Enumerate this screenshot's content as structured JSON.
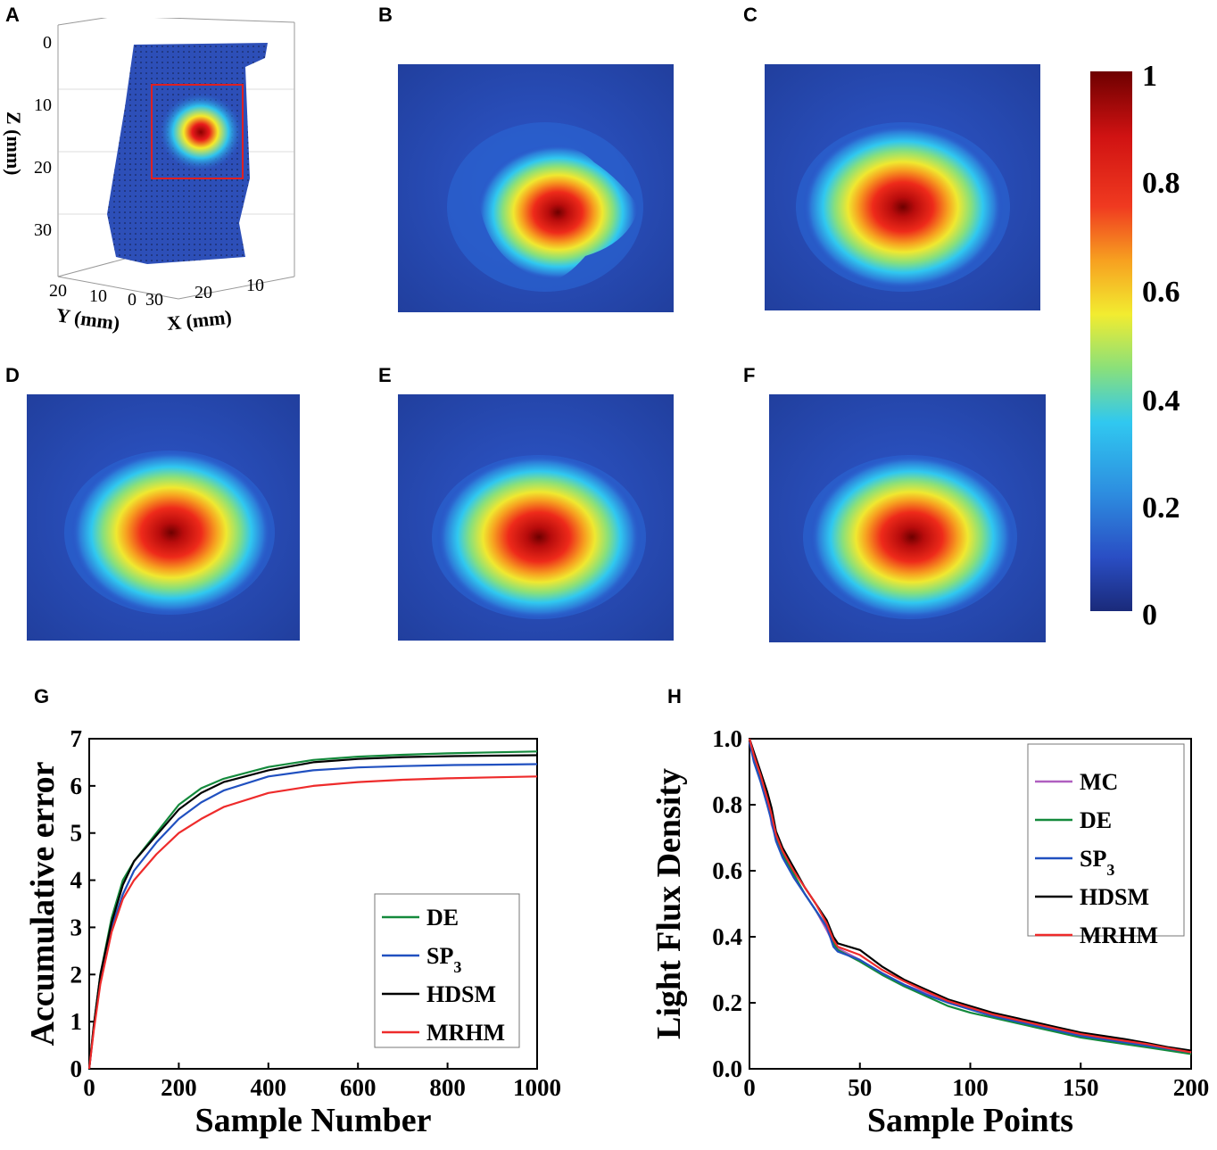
{
  "panels": {
    "A": "A",
    "B": "B",
    "C": "C",
    "D": "D",
    "E": "E",
    "F": "F",
    "G": "G",
    "H": "H"
  },
  "colors": {
    "bg_blue": "#2a4ec4",
    "dark_red": "#7a0000",
    "red": "#e81b1b",
    "yellow": "#f5e92a",
    "cyan": "#2fc4ee",
    "de": "#148a3c",
    "sp3": "#2050c0",
    "hdsm": "#000000",
    "mrhm": "#ee2b2b",
    "mc": "#b060c0"
  },
  "panel_a": {
    "z_axis_label": "Z (mm)",
    "z_ticks": [
      "0",
      "10",
      "20",
      "30"
    ],
    "y_axis_label": "Y (mm)",
    "y_ticks": [
      "20",
      "10",
      "0"
    ],
    "x_axis_label": "X (mm)",
    "x_ticks": [
      "30",
      "20",
      "10"
    ]
  },
  "colorbar": {
    "ticks": [
      "1",
      "0.8",
      "0.6",
      "0.4",
      "0.2",
      "0"
    ]
  },
  "chart_data": [
    {
      "id": "G",
      "type": "line",
      "xlabel": "Sample Number",
      "ylabel": "Accumulative error",
      "xlim": [
        0,
        1000
      ],
      "ylim": [
        0,
        7
      ],
      "xticks": [
        "0",
        "200",
        "400",
        "600",
        "800",
        "1000"
      ],
      "yticks": [
        "0",
        "1",
        "2",
        "3",
        "4",
        "5",
        "6",
        "7"
      ],
      "legend": "bottom-right",
      "x": [
        0,
        10,
        25,
        50,
        75,
        100,
        150,
        200,
        250,
        300,
        400,
        500,
        600,
        700,
        800,
        900,
        1000
      ],
      "series": [
        {
          "name": "DE",
          "color_key": "de",
          "values": [
            0,
            0.9,
            2.0,
            3.2,
            4.0,
            4.4,
            5.0,
            5.6,
            5.95,
            6.15,
            6.4,
            6.55,
            6.62,
            6.66,
            6.69,
            6.71,
            6.73
          ]
        },
        {
          "name": "SP3",
          "color_key": "sp3",
          "values": [
            0,
            0.85,
            1.9,
            3.0,
            3.7,
            4.2,
            4.8,
            5.3,
            5.65,
            5.9,
            6.2,
            6.33,
            6.39,
            6.42,
            6.44,
            6.45,
            6.46
          ]
        },
        {
          "name": "HDSM",
          "color_key": "hdsm",
          "values": [
            0,
            0.9,
            2.0,
            3.1,
            3.9,
            4.4,
            4.95,
            5.5,
            5.85,
            6.08,
            6.33,
            6.5,
            6.57,
            6.61,
            6.63,
            6.64,
            6.65
          ]
        },
        {
          "name": "MRHM",
          "color_key": "mrhm",
          "values": [
            0,
            0.8,
            1.8,
            2.9,
            3.6,
            4.0,
            4.55,
            5.0,
            5.3,
            5.55,
            5.85,
            6.0,
            6.08,
            6.13,
            6.16,
            6.18,
            6.2
          ]
        }
      ]
    },
    {
      "id": "H",
      "type": "line",
      "xlabel": "Sample Points",
      "ylabel": "Light Flux Density",
      "xlim": [
        0,
        200
      ],
      "ylim": [
        0,
        1.0
      ],
      "xticks": [
        "0",
        "50",
        "100",
        "150",
        "200"
      ],
      "yticks": [
        "0.0",
        "0.2",
        "0.4",
        "0.6",
        "0.8",
        "1.0"
      ],
      "legend": "top-right",
      "x": [
        0,
        2,
        5,
        8,
        10,
        12,
        15,
        20,
        25,
        30,
        35,
        38,
        40,
        50,
        60,
        70,
        80,
        90,
        100,
        110,
        120,
        130,
        140,
        150,
        160,
        170,
        180,
        190,
        200
      ],
      "series": [
        {
          "name": "MC",
          "color_key": "mc",
          "values": [
            1.0,
            0.96,
            0.9,
            0.83,
            0.74,
            0.7,
            0.65,
            0.58,
            0.53,
            0.48,
            0.42,
            0.38,
            0.365,
            0.33,
            0.29,
            0.255,
            0.23,
            0.2,
            0.18,
            0.16,
            0.145,
            0.13,
            0.115,
            0.1,
            0.09,
            0.08,
            0.07,
            0.06,
            0.05
          ]
        },
        {
          "name": "DE",
          "color_key": "de",
          "values": [
            1.0,
            0.95,
            0.88,
            0.81,
            0.76,
            0.7,
            0.65,
            0.59,
            0.53,
            0.48,
            0.43,
            0.38,
            0.36,
            0.325,
            0.285,
            0.25,
            0.22,
            0.19,
            0.17,
            0.155,
            0.14,
            0.125,
            0.11,
            0.095,
            0.085,
            0.075,
            0.065,
            0.055,
            0.045
          ]
        },
        {
          "name": "SP3",
          "color_key": "sp3",
          "values": [
            0.99,
            0.93,
            0.87,
            0.8,
            0.75,
            0.69,
            0.64,
            0.58,
            0.53,
            0.48,
            0.43,
            0.37,
            0.355,
            0.33,
            0.29,
            0.255,
            0.225,
            0.2,
            0.18,
            0.16,
            0.145,
            0.13,
            0.115,
            0.1,
            0.09,
            0.08,
            0.07,
            0.06,
            0.05
          ]
        },
        {
          "name": "HDSM",
          "color_key": "hdsm",
          "values": [
            1.0,
            0.96,
            0.9,
            0.84,
            0.79,
            0.72,
            0.67,
            0.61,
            0.55,
            0.5,
            0.45,
            0.4,
            0.38,
            0.36,
            0.31,
            0.27,
            0.24,
            0.21,
            0.19,
            0.17,
            0.155,
            0.14,
            0.125,
            0.11,
            0.1,
            0.09,
            0.078,
            0.065,
            0.055
          ]
        },
        {
          "name": "MRHM",
          "color_key": "mrhm",
          "values": [
            1.0,
            0.95,
            0.89,
            0.82,
            0.77,
            0.71,
            0.66,
            0.6,
            0.55,
            0.5,
            0.44,
            0.39,
            0.37,
            0.345,
            0.3,
            0.265,
            0.235,
            0.205,
            0.185,
            0.165,
            0.15,
            0.135,
            0.12,
            0.105,
            0.095,
            0.085,
            0.075,
            0.062,
            0.05
          ]
        }
      ]
    }
  ]
}
